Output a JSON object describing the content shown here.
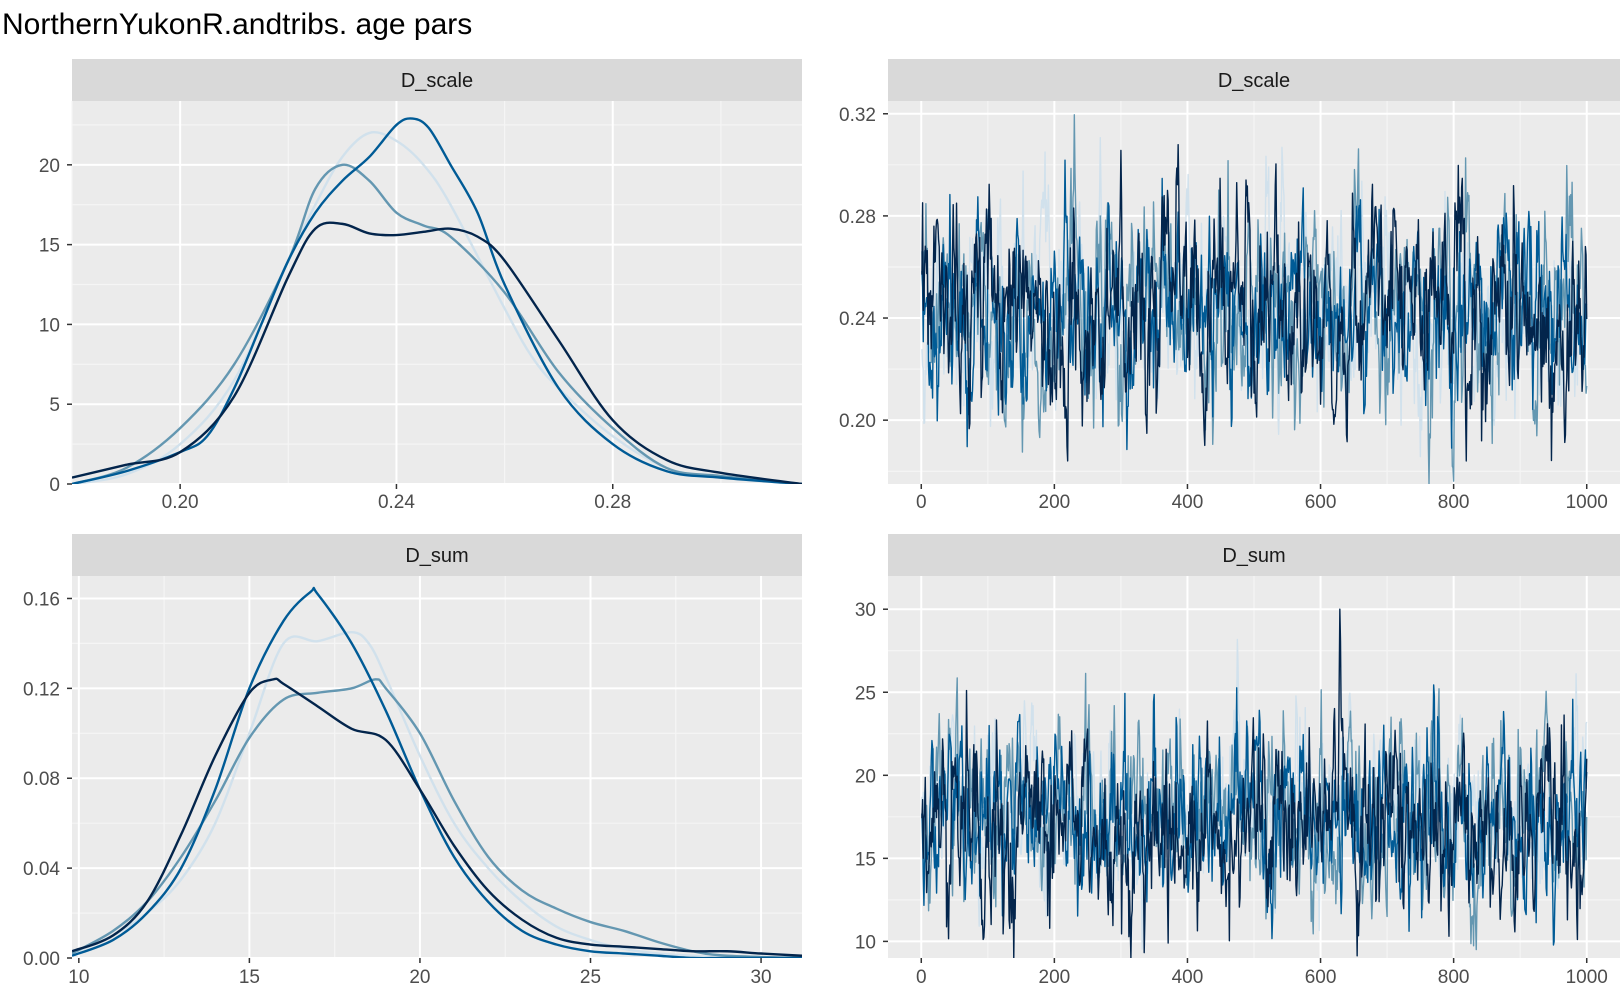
{
  "title": "NorthernYukonR.andtribs. age pars",
  "colors": {
    "panel_bg": "#ebebeb",
    "strip_bg": "#d9d9d9",
    "grid_major": "#ffffff",
    "grid_minor": "#f5f5f5",
    "tick_text": "#4d4d4d",
    "chains": [
      "#d1e1ec",
      "#6497b1",
      "#005b96",
      "#03254c"
    ]
  },
  "chart_data": [
    {
      "type": "line",
      "kind": "density",
      "strip": "D_scale",
      "xlim": [
        0.18,
        0.315
      ],
      "ylim": [
        0,
        24
      ],
      "x_ticks": [
        0.2,
        0.24,
        0.28
      ],
      "x_tick_labels": [
        "0.20",
        "0.24",
        "0.28"
      ],
      "y_ticks": [
        0,
        5,
        10,
        15,
        20
      ],
      "y_tick_labels": [
        "0",
        "5",
        "10",
        "15",
        "20"
      ],
      "series": [
        {
          "color": "#d1e1ec",
          "x": [
            0.18,
            0.19,
            0.2,
            0.21,
            0.22,
            0.225,
            0.23,
            0.235,
            0.24,
            0.245,
            0.25,
            0.26,
            0.265,
            0.27,
            0.28,
            0.29,
            0.3,
            0.315
          ],
          "y": [
            0,
            0.6,
            2.5,
            6.5,
            14,
            17.5,
            20.5,
            22,
            21.5,
            20,
            17.5,
            11,
            8,
            6,
            3,
            1,
            0.4,
            0
          ]
        },
        {
          "color": "#6497b1",
          "x": [
            0.18,
            0.19,
            0.2,
            0.21,
            0.22,
            0.225,
            0.23,
            0.235,
            0.24,
            0.245,
            0.25,
            0.26,
            0.27,
            0.28,
            0.29,
            0.3,
            0.315
          ],
          "y": [
            0,
            1,
            3.5,
            7.5,
            14,
            18.5,
            20,
            19,
            17,
            16.2,
            15.5,
            12,
            7,
            3.5,
            1,
            0.5,
            0
          ]
        },
        {
          "color": "#005b96",
          "x": [
            0.18,
            0.19,
            0.2,
            0.205,
            0.21,
            0.215,
            0.22,
            0.225,
            0.23,
            0.235,
            0.24,
            0.243,
            0.246,
            0.25,
            0.255,
            0.26,
            0.27,
            0.28,
            0.29,
            0.3,
            0.315
          ],
          "y": [
            0,
            0.8,
            2,
            3,
            6,
            10,
            14,
            17,
            19,
            20.5,
            22.5,
            22.9,
            22.3,
            20,
            17,
            12.5,
            6,
            2.5,
            0.8,
            0.4,
            0
          ]
        },
        {
          "color": "#03254c",
          "x": [
            0.18,
            0.19,
            0.2,
            0.21,
            0.22,
            0.225,
            0.23,
            0.235,
            0.24,
            0.245,
            0.25,
            0.255,
            0.26,
            0.27,
            0.28,
            0.29,
            0.3,
            0.315
          ],
          "y": [
            0.4,
            1.2,
            2,
            5.5,
            13,
            16,
            16.3,
            15.7,
            15.6,
            15.8,
            16,
            15.5,
            14,
            9,
            4,
            1.5,
            0.7,
            0
          ]
        }
      ]
    },
    {
      "type": "line",
      "kind": "trace",
      "strip": "D_scale",
      "xlim": [
        -50,
        1050
      ],
      "ylim": [
        0.175,
        0.325
      ],
      "x_ticks": [
        0,
        200,
        400,
        600,
        800,
        1000
      ],
      "x_tick_labels": [
        "0",
        "200",
        "400",
        "600",
        "800",
        "1000"
      ],
      "y_ticks": [
        0.2,
        0.24,
        0.28,
        0.32
      ],
      "y_tick_labels": [
        "0.20",
        "0.24",
        "0.28",
        "0.32"
      ],
      "series": [
        {
          "color": "#d1e1ec",
          "mean": 0.242,
          "sd": 0.018,
          "seed": 11,
          "n": 1000
        },
        {
          "color": "#6497b1",
          "mean": 0.24,
          "sd": 0.019,
          "seed": 23,
          "n": 1000
        },
        {
          "color": "#005b96",
          "mean": 0.244,
          "sd": 0.018,
          "seed": 37,
          "n": 1000
        },
        {
          "color": "#03254c",
          "mean": 0.243,
          "sd": 0.02,
          "seed": 53,
          "n": 1000
        }
      ]
    },
    {
      "type": "line",
      "kind": "density",
      "strip": "D_sum",
      "xlim": [
        9.8,
        31.2
      ],
      "ylim": [
        0,
        0.17
      ],
      "x_ticks": [
        10,
        15,
        20,
        25,
        30
      ],
      "x_tick_labels": [
        "10",
        "15",
        "20",
        "25",
        "30"
      ],
      "y_ticks": [
        0,
        0.04,
        0.08,
        0.12,
        0.16
      ],
      "y_tick_labels": [
        "0.00",
        "0.04",
        "0.08",
        "0.12",
        "0.16"
      ],
      "series": [
        {
          "color": "#d1e1ec",
          "x": [
            9.8,
            11,
            12,
            13,
            14,
            15,
            16,
            17,
            18,
            18.5,
            19,
            20,
            21,
            22,
            23,
            24,
            25,
            26,
            27,
            28,
            29,
            31.2
          ],
          "y": [
            0.002,
            0.01,
            0.02,
            0.035,
            0.06,
            0.1,
            0.14,
            0.141,
            0.145,
            0.14,
            0.125,
            0.09,
            0.06,
            0.04,
            0.025,
            0.014,
            0.008,
            0.004,
            0.002,
            0.001,
            0,
            0
          ]
        },
        {
          "color": "#6497b1",
          "x": [
            9.8,
            11,
            12,
            13,
            14,
            15,
            16,
            17,
            18,
            18.7,
            19,
            20,
            21,
            22,
            23,
            24,
            25,
            26,
            27,
            28,
            29,
            31.2
          ],
          "y": [
            0.002,
            0.012,
            0.025,
            0.045,
            0.07,
            0.098,
            0.115,
            0.118,
            0.12,
            0.124,
            0.12,
            0.1,
            0.07,
            0.045,
            0.03,
            0.022,
            0.016,
            0.012,
            0.007,
            0.003,
            0.001,
            0
          ]
        },
        {
          "color": "#005b96",
          "x": [
            9.8,
            11,
            12,
            13,
            14,
            15,
            16,
            16.8,
            17,
            18,
            19,
            20,
            21,
            22,
            23,
            24,
            25,
            26,
            27,
            28,
            29,
            31.2
          ],
          "y": [
            0.001,
            0.008,
            0.02,
            0.04,
            0.075,
            0.12,
            0.15,
            0.163,
            0.162,
            0.14,
            0.11,
            0.075,
            0.045,
            0.025,
            0.012,
            0.006,
            0.003,
            0.002,
            0.001,
            0,
            0,
            0
          ]
        },
        {
          "color": "#03254c",
          "x": [
            9.8,
            11,
            12,
            13,
            14,
            15,
            15.7,
            16,
            17,
            18,
            19,
            20,
            21,
            22,
            23,
            24,
            25,
            26,
            27,
            28,
            29,
            30,
            31.2
          ],
          "y": [
            0.003,
            0.01,
            0.025,
            0.055,
            0.09,
            0.118,
            0.124,
            0.122,
            0.112,
            0.102,
            0.097,
            0.075,
            0.05,
            0.03,
            0.017,
            0.009,
            0.006,
            0.005,
            0.004,
            0.003,
            0.003,
            0.002,
            0.001
          ]
        }
      ]
    },
    {
      "type": "line",
      "kind": "trace",
      "strip": "D_sum",
      "xlim": [
        -50,
        1050
      ],
      "ylim": [
        9,
        32
      ],
      "x_ticks": [
        0,
        200,
        400,
        600,
        800,
        1000
      ],
      "x_tick_labels": [
        "0",
        "200",
        "400",
        "600",
        "800",
        "1000"
      ],
      "y_ticks": [
        10,
        15,
        20,
        25,
        30
      ],
      "y_tick_labels": [
        "10",
        "15",
        "20",
        "25",
        "30"
      ],
      "series": [
        {
          "color": "#d1e1ec",
          "mean": 18.0,
          "sd": 2.6,
          "seed": 71,
          "n": 1000
        },
        {
          "color": "#6497b1",
          "mean": 17.8,
          "sd": 2.9,
          "seed": 83,
          "n": 1000
        },
        {
          "color": "#005b96",
          "mean": 17.3,
          "sd": 2.7,
          "seed": 97,
          "n": 1000
        },
        {
          "color": "#03254c",
          "mean": 17.1,
          "sd": 3.0,
          "seed": 109,
          "n": 1000
        }
      ]
    }
  ]
}
